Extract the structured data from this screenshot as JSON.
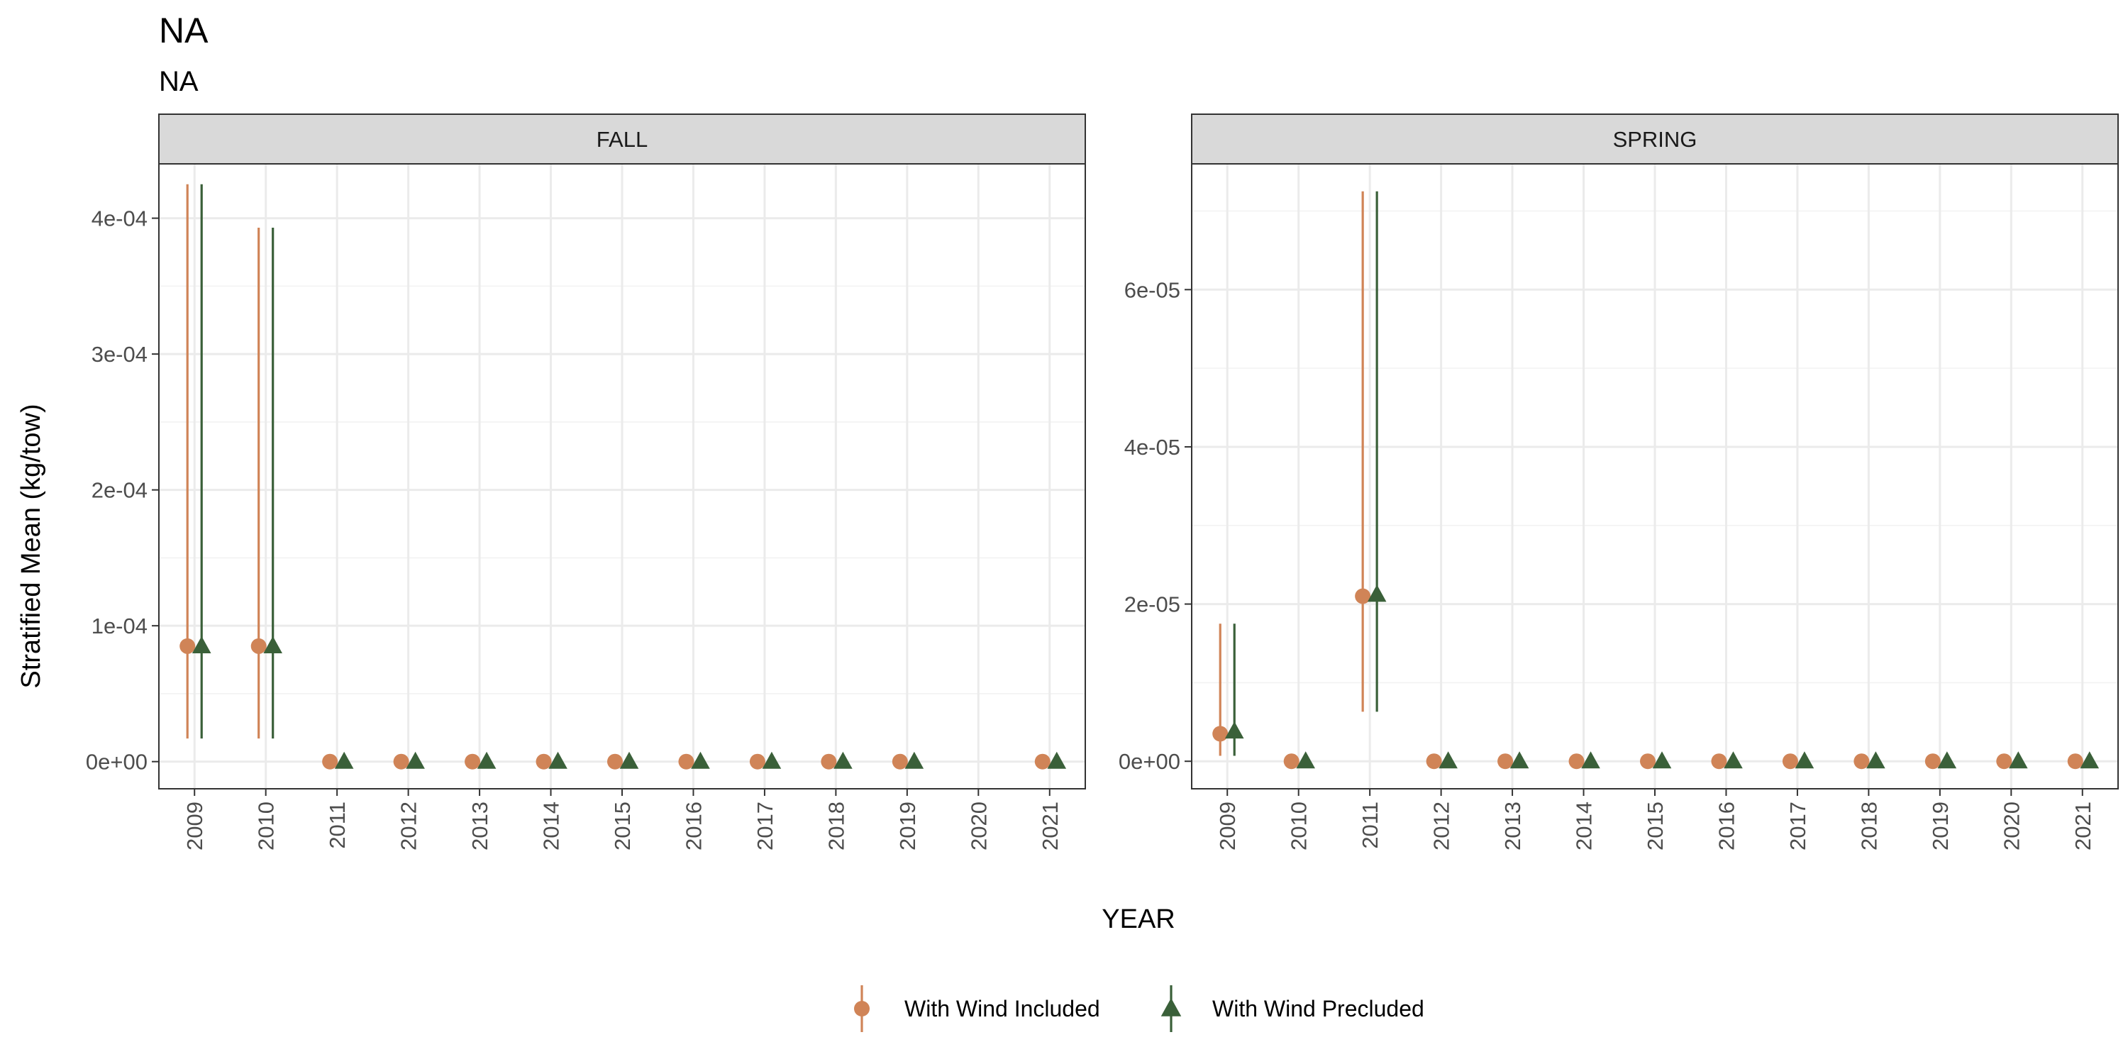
{
  "chart_data": {
    "type": "scatter",
    "title": "NA",
    "subtitle": "NA",
    "xlabel": "YEAR",
    "ylabel": "Stratified Mean (kg/tow)",
    "grid": true,
    "legend_position": "bottom",
    "years": [
      "2009",
      "2010",
      "2011",
      "2012",
      "2013",
      "2014",
      "2015",
      "2016",
      "2017",
      "2018",
      "2019",
      "2020",
      "2021"
    ],
    "series_styles": [
      {
        "name": "With Wind Included",
        "color": "#d08457",
        "shape": "circle"
      },
      {
        "name": "With Wind Precluded",
        "color": "#3a6039",
        "shape": "triangle"
      }
    ],
    "panels": [
      {
        "label": "FALL",
        "ylim": [
          -2e-05,
          0.00044
        ],
        "yticks": [
          0,
          0.0001,
          0.0002,
          0.0003,
          0.0004
        ],
        "ytick_labels": [
          "0e+00",
          "1e-04",
          "2e-04",
          "3e-04",
          "4e-04"
        ],
        "series": [
          {
            "name": "With Wind Included",
            "points": [
              {
                "x": "2009",
                "y": 8.5e-05,
                "ymin": 1.7e-05,
                "ymax": 0.000425
              },
              {
                "x": "2010",
                "y": 8.5e-05,
                "ymin": 1.7e-05,
                "ymax": 0.000393
              },
              {
                "x": "2011",
                "y": 0,
                "ymin": 0,
                "ymax": 0
              },
              {
                "x": "2012",
                "y": 0,
                "ymin": 0,
                "ymax": 0
              },
              {
                "x": "2013",
                "y": 0,
                "ymin": 0,
                "ymax": 0
              },
              {
                "x": "2014",
                "y": 0,
                "ymin": 0,
                "ymax": 0
              },
              {
                "x": "2015",
                "y": 0,
                "ymin": 0,
                "ymax": 0
              },
              {
                "x": "2016",
                "y": 0,
                "ymin": 0,
                "ymax": 0
              },
              {
                "x": "2017",
                "y": 0,
                "ymin": 0,
                "ymax": 0
              },
              {
                "x": "2018",
                "y": 0,
                "ymin": 0,
                "ymax": 0
              },
              {
                "x": "2019",
                "y": 0,
                "ymin": 0,
                "ymax": 0
              },
              {
                "x": "2021",
                "y": 0,
                "ymin": 0,
                "ymax": 0
              }
            ]
          },
          {
            "name": "With Wind Precluded",
            "points": [
              {
                "x": "2009",
                "y": 8.5e-05,
                "ymin": 1.7e-05,
                "ymax": 0.000425
              },
              {
                "x": "2010",
                "y": 8.5e-05,
                "ymin": 1.7e-05,
                "ymax": 0.000393
              },
              {
                "x": "2011",
                "y": 0,
                "ymin": 0,
                "ymax": 0
              },
              {
                "x": "2012",
                "y": 0,
                "ymin": 0,
                "ymax": 0
              },
              {
                "x": "2013",
                "y": 0,
                "ymin": 0,
                "ymax": 0
              },
              {
                "x": "2014",
                "y": 0,
                "ymin": 0,
                "ymax": 0
              },
              {
                "x": "2015",
                "y": 0,
                "ymin": 0,
                "ymax": 0
              },
              {
                "x": "2016",
                "y": 0,
                "ymin": 0,
                "ymax": 0
              },
              {
                "x": "2017",
                "y": 0,
                "ymin": 0,
                "ymax": 0
              },
              {
                "x": "2018",
                "y": 0,
                "ymin": 0,
                "ymax": 0
              },
              {
                "x": "2019",
                "y": 0,
                "ymin": 0,
                "ymax": 0
              },
              {
                "x": "2021",
                "y": 0,
                "ymin": 0,
                "ymax": 0
              }
            ]
          }
        ]
      },
      {
        "label": "SPRING",
        "ylim": [
          -3.5e-06,
          7.6e-05
        ],
        "yticks": [
          0,
          2e-05,
          4e-05,
          6e-05
        ],
        "ytick_labels": [
          "0e+00",
          "2e-05",
          "4e-05",
          "6e-05"
        ],
        "series": [
          {
            "name": "With Wind Included",
            "points": [
              {
                "x": "2009",
                "y": 3.5e-06,
                "ymin": 7e-07,
                "ymax": 1.75e-05
              },
              {
                "x": "2010",
                "y": 0,
                "ymin": 0,
                "ymax": 0
              },
              {
                "x": "2011",
                "y": 2.1e-05,
                "ymin": 6.3e-06,
                "ymax": 7.25e-05
              },
              {
                "x": "2012",
                "y": 0,
                "ymin": 0,
                "ymax": 0
              },
              {
                "x": "2013",
                "y": 0,
                "ymin": 0,
                "ymax": 0
              },
              {
                "x": "2014",
                "y": 0,
                "ymin": 0,
                "ymax": 0
              },
              {
                "x": "2015",
                "y": 0,
                "ymin": 0,
                "ymax": 0
              },
              {
                "x": "2016",
                "y": 0,
                "ymin": 0,
                "ymax": 0
              },
              {
                "x": "2017",
                "y": 0,
                "ymin": 0,
                "ymax": 0
              },
              {
                "x": "2018",
                "y": 0,
                "ymin": 0,
                "ymax": 0
              },
              {
                "x": "2019",
                "y": 0,
                "ymin": 0,
                "ymax": 0
              },
              {
                "x": "2020",
                "y": 0,
                "ymin": 0,
                "ymax": 0
              },
              {
                "x": "2021",
                "y": 0,
                "ymin": 0,
                "ymax": 0
              }
            ]
          },
          {
            "name": "With Wind Precluded",
            "points": [
              {
                "x": "2009",
                "y": 3.8e-06,
                "ymin": 7e-07,
                "ymax": 1.75e-05
              },
              {
                "x": "2010",
                "y": 0,
                "ymin": 0,
                "ymax": 0
              },
              {
                "x": "2011",
                "y": 2.12e-05,
                "ymin": 6.3e-06,
                "ymax": 7.25e-05
              },
              {
                "x": "2012",
                "y": 0,
                "ymin": 0,
                "ymax": 0
              },
              {
                "x": "2013",
                "y": 0,
                "ymin": 0,
                "ymax": 0
              },
              {
                "x": "2014",
                "y": 0,
                "ymin": 0,
                "ymax": 0
              },
              {
                "x": "2015",
                "y": 0,
                "ymin": 0,
                "ymax": 0
              },
              {
                "x": "2016",
                "y": 0,
                "ymin": 0,
                "ymax": 0
              },
              {
                "x": "2017",
                "y": 0,
                "ymin": 0,
                "ymax": 0
              },
              {
                "x": "2018",
                "y": 0,
                "ymin": 0,
                "ymax": 0
              },
              {
                "x": "2019",
                "y": 0,
                "ymin": 0,
                "ymax": 0
              },
              {
                "x": "2020",
                "y": 0,
                "ymin": 0,
                "ymax": 0
              },
              {
                "x": "2021",
                "y": 0,
                "ymin": 0,
                "ymax": 0
              }
            ]
          }
        ]
      }
    ]
  }
}
